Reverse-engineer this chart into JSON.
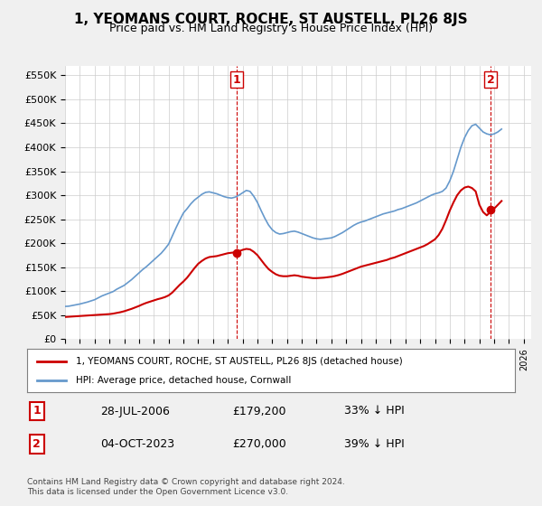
{
  "title": "1, YEOMANS COURT, ROCHE, ST AUSTELL, PL26 8JS",
  "subtitle": "Price paid vs. HM Land Registry's House Price Index (HPI)",
  "ylabel_ticks": [
    "£0",
    "£50K",
    "£100K",
    "£150K",
    "£200K",
    "£250K",
    "£300K",
    "£350K",
    "£400K",
    "£450K",
    "£500K",
    "£550K"
  ],
  "ytick_values": [
    0,
    50000,
    100000,
    150000,
    200000,
    250000,
    300000,
    350000,
    400000,
    450000,
    500000,
    550000
  ],
  "xlim": [
    1995.0,
    2026.5
  ],
  "ylim": [
    0,
    570000
  ],
  "hpi_color": "#6699cc",
  "price_color": "#cc0000",
  "annotation1_date": "28-JUL-2006",
  "annotation1_price": 179200,
  "annotation1_label": "33% ↓ HPI",
  "annotation2_date": "04-OCT-2023",
  "annotation2_price": 270000,
  "annotation2_label": "39% ↓ HPI",
  "legend_line1": "1, YEOMANS COURT, ROCHE, ST AUSTELL, PL26 8JS (detached house)",
  "legend_line2": "HPI: Average price, detached house, Cornwall",
  "footer": "Contains HM Land Registry data © Crown copyright and database right 2024.\nThis data is licensed under the Open Government Licence v3.0.",
  "hpi_x": [
    1995.0,
    1995.25,
    1995.5,
    1995.75,
    1996.0,
    1996.25,
    1996.5,
    1996.75,
    1997.0,
    1997.25,
    1997.5,
    1997.75,
    1998.0,
    1998.25,
    1998.5,
    1998.75,
    1999.0,
    1999.25,
    1999.5,
    1999.75,
    2000.0,
    2000.25,
    2000.5,
    2000.75,
    2001.0,
    2001.25,
    2001.5,
    2001.75,
    2002.0,
    2002.25,
    2002.5,
    2002.75,
    2003.0,
    2003.25,
    2003.5,
    2003.75,
    2004.0,
    2004.25,
    2004.5,
    2004.75,
    2005.0,
    2005.25,
    2005.5,
    2005.75,
    2006.0,
    2006.25,
    2006.5,
    2006.75,
    2007.0,
    2007.25,
    2007.5,
    2007.75,
    2008.0,
    2008.25,
    2008.5,
    2008.75,
    2009.0,
    2009.25,
    2009.5,
    2009.75,
    2010.0,
    2010.25,
    2010.5,
    2010.75,
    2011.0,
    2011.25,
    2011.5,
    2011.75,
    2012.0,
    2012.25,
    2012.5,
    2012.75,
    2013.0,
    2013.25,
    2013.5,
    2013.75,
    2014.0,
    2014.25,
    2014.5,
    2014.75,
    2015.0,
    2015.25,
    2015.5,
    2015.75,
    2016.0,
    2016.25,
    2016.5,
    2016.75,
    2017.0,
    2017.25,
    2017.5,
    2017.75,
    2018.0,
    2018.25,
    2018.5,
    2018.75,
    2019.0,
    2019.25,
    2019.5,
    2019.75,
    2020.0,
    2020.25,
    2020.5,
    2020.75,
    2021.0,
    2021.25,
    2021.5,
    2021.75,
    2022.0,
    2022.25,
    2022.5,
    2022.75,
    2023.0,
    2023.25,
    2023.5,
    2023.75,
    2024.0,
    2024.25,
    2024.5
  ],
  "hpi_y": [
    68000,
    68500,
    70000,
    71500,
    73000,
    75000,
    77000,
    79500,
    82000,
    86000,
    90000,
    93000,
    96000,
    99000,
    104000,
    108000,
    112000,
    118000,
    124000,
    131000,
    138000,
    145000,
    151000,
    158000,
    165000,
    172000,
    179000,
    188000,
    198000,
    215000,
    232000,
    248000,
    263000,
    272000,
    282000,
    290000,
    296000,
    302000,
    306000,
    307000,
    305000,
    303000,
    300000,
    297000,
    295000,
    294000,
    296000,
    300000,
    305000,
    310000,
    308000,
    298000,
    285000,
    268000,
    252000,
    238000,
    228000,
    222000,
    219000,
    220000,
    222000,
    224000,
    225000,
    223000,
    220000,
    217000,
    214000,
    211000,
    209000,
    208000,
    209000,
    210000,
    211000,
    214000,
    218000,
    222000,
    227000,
    232000,
    237000,
    241000,
    244000,
    246000,
    249000,
    252000,
    255000,
    258000,
    261000,
    263000,
    265000,
    267000,
    270000,
    272000,
    275000,
    278000,
    281000,
    284000,
    288000,
    292000,
    296000,
    300000,
    303000,
    305000,
    308000,
    315000,
    330000,
    350000,
    375000,
    400000,
    420000,
    435000,
    445000,
    448000,
    440000,
    432000,
    428000,
    426000,
    428000,
    432000,
    438000
  ],
  "price_x": [
    1995.0,
    1995.25,
    1995.5,
    1995.75,
    1996.0,
    1996.25,
    1996.5,
    1996.75,
    1997.0,
    1997.25,
    1997.5,
    1997.75,
    1998.0,
    1998.25,
    1998.5,
    1998.75,
    1999.0,
    1999.25,
    1999.5,
    1999.75,
    2000.0,
    2000.25,
    2000.5,
    2000.75,
    2001.0,
    2001.25,
    2001.5,
    2001.75,
    2002.0,
    2002.25,
    2002.5,
    2002.75,
    2003.0,
    2003.25,
    2003.5,
    2003.75,
    2004.0,
    2004.25,
    2004.5,
    2004.75,
    2005.0,
    2005.25,
    2005.5,
    2005.75,
    2006.0,
    2006.25,
    2006.5,
    2006.75,
    2007.0,
    2007.25,
    2007.5,
    2007.75,
    2008.0,
    2008.25,
    2008.5,
    2008.75,
    2009.0,
    2009.25,
    2009.5,
    2009.75,
    2010.0,
    2010.25,
    2010.5,
    2010.75,
    2011.0,
    2011.25,
    2011.5,
    2011.75,
    2012.0,
    2012.25,
    2012.5,
    2012.75,
    2013.0,
    2013.25,
    2013.5,
    2013.75,
    2014.0,
    2014.25,
    2014.5,
    2014.75,
    2015.0,
    2015.25,
    2015.5,
    2015.75,
    2016.0,
    2016.25,
    2016.5,
    2016.75,
    2017.0,
    2017.25,
    2017.5,
    2017.75,
    2018.0,
    2018.25,
    2018.5,
    2018.75,
    2019.0,
    2019.25,
    2019.5,
    2019.75,
    2020.0,
    2020.25,
    2020.5,
    2020.75,
    2021.0,
    2021.25,
    2021.5,
    2021.75,
    2022.0,
    2022.25,
    2022.5,
    2022.75,
    2023.0,
    2023.25,
    2023.5,
    2023.75,
    2024.0,
    2024.25,
    2024.5
  ],
  "price_y": [
    46000,
    46500,
    47000,
    47500,
    48000,
    48500,
    49000,
    49500,
    50000,
    50500,
    51000,
    51500,
    52000,
    53000,
    54500,
    56000,
    58000,
    60500,
    63000,
    66000,
    69000,
    72500,
    75500,
    78000,
    80500,
    83000,
    85000,
    87500,
    91000,
    97000,
    105000,
    113000,
    120000,
    128000,
    138000,
    148000,
    157000,
    163000,
    168000,
    171000,
    172000,
    173000,
    175000,
    177000,
    179000,
    180000,
    181000,
    183000,
    186000,
    188000,
    187000,
    182000,
    175000,
    165000,
    155000,
    146000,
    140000,
    135000,
    132000,
    131000,
    131000,
    132000,
    133000,
    132000,
    130000,
    129000,
    128000,
    127000,
    127000,
    127500,
    128000,
    129000,
    130000,
    131500,
    133500,
    136000,
    139000,
    142000,
    145000,
    148000,
    151000,
    153000,
    155000,
    157000,
    159000,
    161000,
    163000,
    165000,
    168000,
    170000,
    173000,
    176000,
    179000,
    182000,
    185000,
    188000,
    191000,
    194000,
    198000,
    203000,
    208000,
    217000,
    230000,
    248000,
    268000,
    285000,
    300000,
    310000,
    316000,
    318000,
    315000,
    308000,
    280000,
    265000,
    258000,
    265000,
    272000,
    280000,
    288000
  ],
  "sale1_x": 2006.583,
  "sale1_y": 179200,
  "sale2_x": 2023.75,
  "sale2_y": 270000,
  "background_color": "#f0f0f0",
  "plot_bg_color": "#ffffff",
  "grid_color": "#cccccc"
}
